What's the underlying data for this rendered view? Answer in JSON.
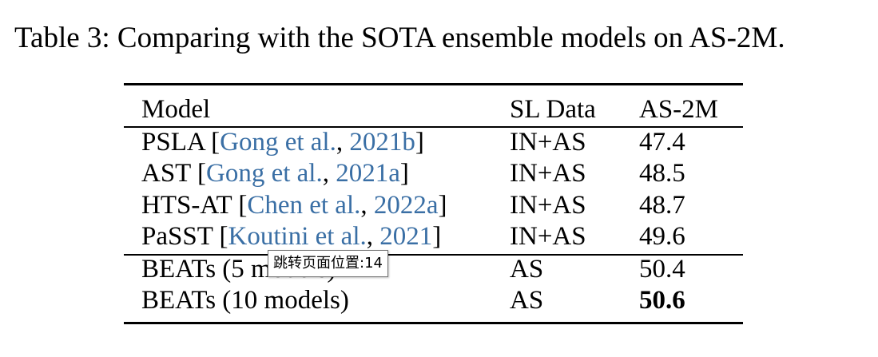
{
  "caption": "Table 3: Comparing with the SOTA ensemble models on AS-2M.",
  "header": {
    "model": "Model",
    "sl_data": "SL Data",
    "as2m": "AS-2M"
  },
  "rows": [
    {
      "model": "PSLA",
      "open": " [",
      "cite_authors": "Gong et al.",
      "sep": ", ",
      "cite_year": "2021b",
      "close": "]",
      "sl_data": "IN+AS",
      "as2m": "47.4"
    },
    {
      "model": "AST",
      "open": " [",
      "cite_authors": "Gong et al.",
      "sep": ", ",
      "cite_year": "2021a",
      "close": "]",
      "sl_data": "IN+AS",
      "as2m": "48.5"
    },
    {
      "model": "HTS-AT",
      "open": " [",
      "cite_authors": "Chen et al.",
      "sep": ", ",
      "cite_year": "2022a",
      "close": "]",
      "sl_data": "IN+AS",
      "as2m": "48.7"
    },
    {
      "model": "PaSST",
      "open": " [",
      "cite_authors": "Koutini et al.",
      "sep": ", ",
      "cite_year": "2021",
      "close": "]",
      "sl_data": "IN+AS",
      "as2m": "49.6"
    },
    {
      "model": "BEATs (5 models)",
      "sl_data": "AS",
      "as2m": "50.4"
    },
    {
      "model": "BEATs (10 models)",
      "sl_data": "AS",
      "as2m": "50.6"
    }
  ],
  "tooltip": "跳转页面位置:14"
}
